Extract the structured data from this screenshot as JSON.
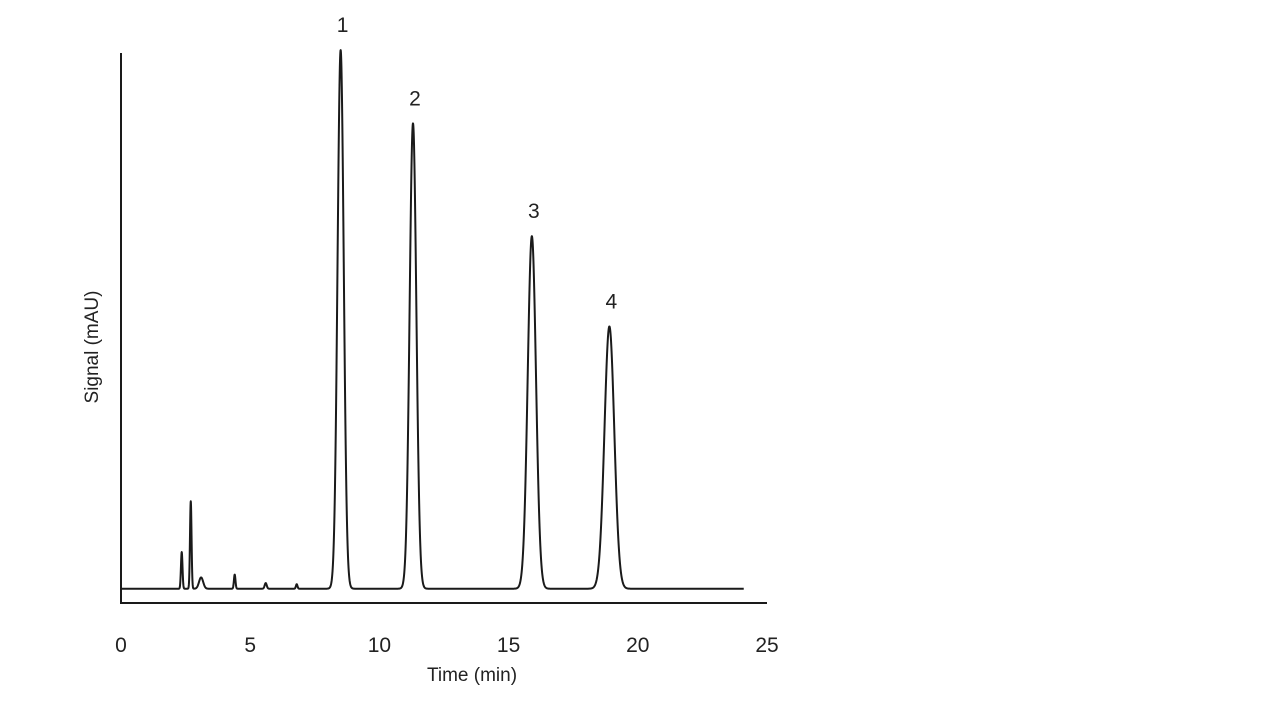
{
  "chart_data": {
    "type": "line",
    "title": "",
    "xlabel": "Time (min)",
    "ylabel": "Signal (mAU)",
    "xlim": [
      0,
      25
    ],
    "ylim": [
      0,
      100
    ],
    "x_ticks": [
      0,
      5,
      10,
      15,
      20,
      25
    ],
    "x_tick_labels": [
      "0",
      "5",
      "10",
      "15",
      "20",
      "25"
    ],
    "y_ticks_shown": false,
    "grid": false,
    "legend": "none",
    "baseline": 2,
    "trace_end": 24.1,
    "peaks": [
      {
        "label": "",
        "time": 2.35,
        "height": 6.5,
        "width": 0.03
      },
      {
        "label": "",
        "time": 2.7,
        "height": 15.5,
        "width": 0.03
      },
      {
        "label": "",
        "time": 3.1,
        "height": 2,
        "width": 0.08
      },
      {
        "label": "",
        "time": 4.4,
        "height": 2.5,
        "width": 0.03
      },
      {
        "label": "",
        "time": 5.6,
        "height": 1,
        "width": 0.04
      },
      {
        "label": "",
        "time": 6.8,
        "height": 0.8,
        "width": 0.03
      },
      {
        "label": "1",
        "time": 8.5,
        "height": 95.5,
        "width": 0.12
      },
      {
        "label": "2",
        "time": 11.3,
        "height": 82.5,
        "width": 0.13
      },
      {
        "label": "3",
        "time": 15.9,
        "height": 62.5,
        "width": 0.16
      },
      {
        "label": "4",
        "time": 18.9,
        "height": 46.5,
        "width": 0.19
      }
    ]
  }
}
